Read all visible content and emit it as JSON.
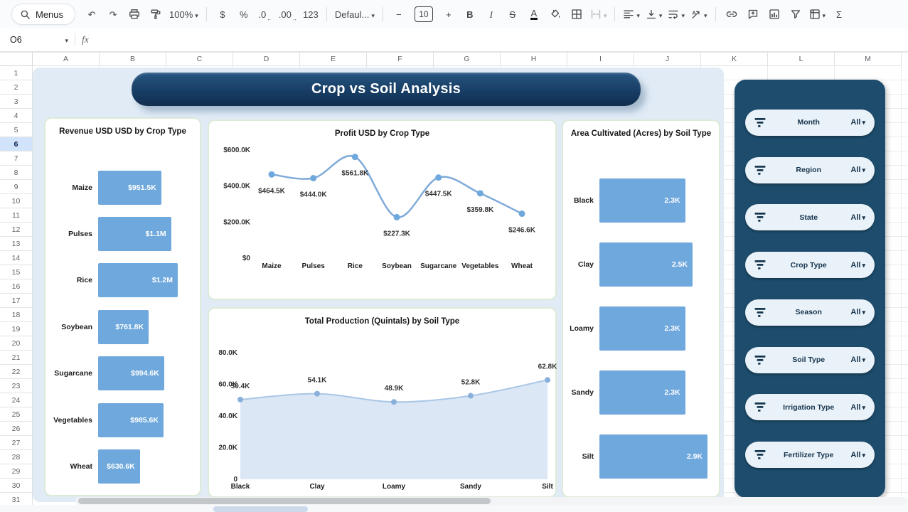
{
  "toolbar": {
    "menus": {
      "label": "Menus"
    },
    "items": [
      {
        "name": "undo",
        "type": "glyph",
        "glyph": "↶"
      },
      {
        "name": "redo",
        "type": "glyph",
        "glyph": "↷"
      },
      {
        "name": "print",
        "type": "svg",
        "icon": "print"
      },
      {
        "name": "paint-format",
        "type": "svg",
        "icon": "roller"
      },
      {
        "name": "zoom",
        "type": "dropdown",
        "label": "100%"
      },
      {
        "type": "divider"
      },
      {
        "name": "format-currency",
        "type": "glyph",
        "glyph": "$"
      },
      {
        "name": "format-percent",
        "type": "glyph",
        "glyph": "%"
      },
      {
        "name": "decrease-decimal",
        "type": "glyph",
        "glyph": ".0",
        "sub": "←"
      },
      {
        "name": "increase-decimal",
        "type": "glyph",
        "glyph": ".00",
        "sub": "→"
      },
      {
        "name": "more-formats",
        "type": "glyph",
        "glyph": "123"
      },
      {
        "type": "divider"
      },
      {
        "name": "font-family",
        "type": "dropdown",
        "label": "Defaul..."
      },
      {
        "type": "divider"
      },
      {
        "name": "decrease-font-size",
        "type": "glyph",
        "glyph": "−"
      },
      {
        "name": "font-size",
        "type": "box",
        "label": "10"
      },
      {
        "name": "increase-font-size",
        "type": "glyph",
        "glyph": "+"
      },
      {
        "name": "bold",
        "type": "glyph",
        "glyph": "B",
        "bold": true
      },
      {
        "name": "italic",
        "type": "glyph",
        "glyph": "I",
        "italic": true
      },
      {
        "name": "strikethrough",
        "type": "glyph",
        "glyph": "S",
        "strike": true
      },
      {
        "name": "text-color",
        "type": "glyph",
        "glyph": "A",
        "underline": true
      },
      {
        "name": "fill-color",
        "type": "svg",
        "icon": "fill"
      },
      {
        "name": "borders",
        "type": "svg",
        "icon": "borders"
      },
      {
        "name": "merge-cells",
        "type": "svg",
        "icon": "merge",
        "caret": true,
        "disabled": true
      },
      {
        "type": "divider"
      },
      {
        "name": "horizontal-align",
        "type": "svg",
        "icon": "align",
        "caret": true
      },
      {
        "name": "vertical-align",
        "type": "svg",
        "icon": "valign",
        "caret": true
      },
      {
        "name": "text-wrap",
        "type": "svg",
        "icon": "wrap",
        "caret": true
      },
      {
        "name": "text-rotation",
        "type": "svg",
        "icon": "rotate",
        "caret": true
      },
      {
        "type": "divider"
      },
      {
        "name": "insert-link",
        "type": "svg",
        "icon": "link"
      },
      {
        "name": "insert-comment",
        "type": "svg",
        "icon": "comment"
      },
      {
        "name": "insert-chart",
        "type": "svg",
        "icon": "chart"
      },
      {
        "name": "create-filter",
        "type": "svg",
        "icon": "funnel"
      },
      {
        "name": "table-views",
        "type": "svg",
        "icon": "pivot",
        "caret": true
      },
      {
        "name": "functions",
        "type": "glyph",
        "glyph": "Σ"
      }
    ]
  },
  "formula_bar": {
    "name_box_value": "O6",
    "fx_label": "fx"
  },
  "grid": {
    "columns": [
      "A",
      "B",
      "C",
      "D",
      "E",
      "F",
      "G",
      "H",
      "I",
      "J",
      "K",
      "L",
      "M"
    ],
    "rows": [
      1,
      2,
      3,
      4,
      5,
      6,
      7,
      8,
      9,
      10,
      11,
      12,
      13,
      14,
      15,
      16,
      17,
      18,
      19,
      20,
      21,
      22,
      23,
      24,
      25,
      26,
      27,
      28,
      29,
      30,
      31
    ],
    "active_row": 6
  },
  "dashboard": {
    "title": "Crop vs Soil Analysis",
    "filters": [
      {
        "label": "Month",
        "value": "All"
      },
      {
        "label": "Region",
        "value": "All"
      },
      {
        "label": "State",
        "value": "All"
      },
      {
        "label": "Crop Type",
        "value": "All"
      },
      {
        "label": "Season",
        "value": "All"
      },
      {
        "label": "Soil Type",
        "value": "All"
      },
      {
        "label": "Irrigation Type",
        "value": "All"
      },
      {
        "label": "Fertilizer Type",
        "value": "All"
      }
    ]
  },
  "chart_data": [
    {
      "id": "revenue_by_crop",
      "type": "bar",
      "orientation": "horizontal",
      "title": "Revenue USD USD by Crop Type",
      "categories": [
        "Maize",
        "Pulses",
        "Rice",
        "Soybean",
        "Sugarcane",
        "Vegetables",
        "Wheat"
      ],
      "values": [
        951500,
        1100000,
        1200000,
        761800,
        994600,
        985600,
        630600
      ],
      "value_labels": [
        "$951.5K",
        "$1.1M",
        "$1.2M",
        "$761.8K",
        "$994.6K",
        "$985.6K",
        "$630.6K"
      ],
      "xlim": [
        0,
        1200000
      ],
      "bar_color": "#6fa8dc"
    },
    {
      "id": "profit_by_crop",
      "type": "line",
      "title": "Profit USD by Crop Type",
      "categories": [
        "Maize",
        "Pulses",
        "Rice",
        "Soybean",
        "Sugarcane",
        "Vegetables",
        "Wheat"
      ],
      "values": [
        464500,
        444000,
        561800,
        227300,
        447500,
        359800,
        246600
      ],
      "value_labels": [
        "$464.5K",
        "$444.0K",
        "$561.8K",
        "$227.3K",
        "$447.5K",
        "$359.8K",
        "$246.6K"
      ],
      "ylim": [
        0,
        600000
      ],
      "yticks": [
        {
          "value": 600000,
          "label": "$600.0K"
        },
        {
          "value": 400000,
          "label": "$400.0K"
        },
        {
          "value": 200000,
          "label": "$200.0K"
        },
        {
          "value": 0,
          "label": "$0"
        }
      ],
      "line_color": "#7faad9",
      "point_color": "#6fa8dc"
    },
    {
      "id": "production_by_soil",
      "type": "area",
      "title": "Total Production (Quintals) by Soil Type",
      "categories": [
        "Black",
        "Clay",
        "Loamy",
        "Sandy",
        "Silt"
      ],
      "values": [
        50400,
        54100,
        48900,
        52800,
        62800
      ],
      "value_labels": [
        "50.4K",
        "54.1K",
        "48.9K",
        "52.8K",
        "62.8K"
      ],
      "ylim": [
        0,
        80000
      ],
      "yticks": [
        {
          "value": 80000,
          "label": "80.0K"
        },
        {
          "value": 60000,
          "label": "60.0K"
        },
        {
          "value": 40000,
          "label": "40.0K"
        },
        {
          "value": 20000,
          "label": "20.0K"
        },
        {
          "value": 0,
          "label": "0"
        }
      ],
      "line_color": "#a9c6e6",
      "fill_color": "#dbe7f5",
      "point_color": "#88b0da"
    },
    {
      "id": "area_by_soil",
      "type": "bar",
      "orientation": "horizontal",
      "title": "Area Cultivated (Acres) by Soil Type",
      "categories": [
        "Black",
        "Clay",
        "Loamy",
        "Sandy",
        "Silt"
      ],
      "values": [
        2300,
        2500,
        2300,
        2300,
        2900
      ],
      "value_labels": [
        "2.3K",
        "2.5K",
        "2.3K",
        "2.3K",
        "2.9K"
      ],
      "xlim": [
        0,
        2900
      ],
      "bar_color": "#6fa8dc"
    }
  ]
}
